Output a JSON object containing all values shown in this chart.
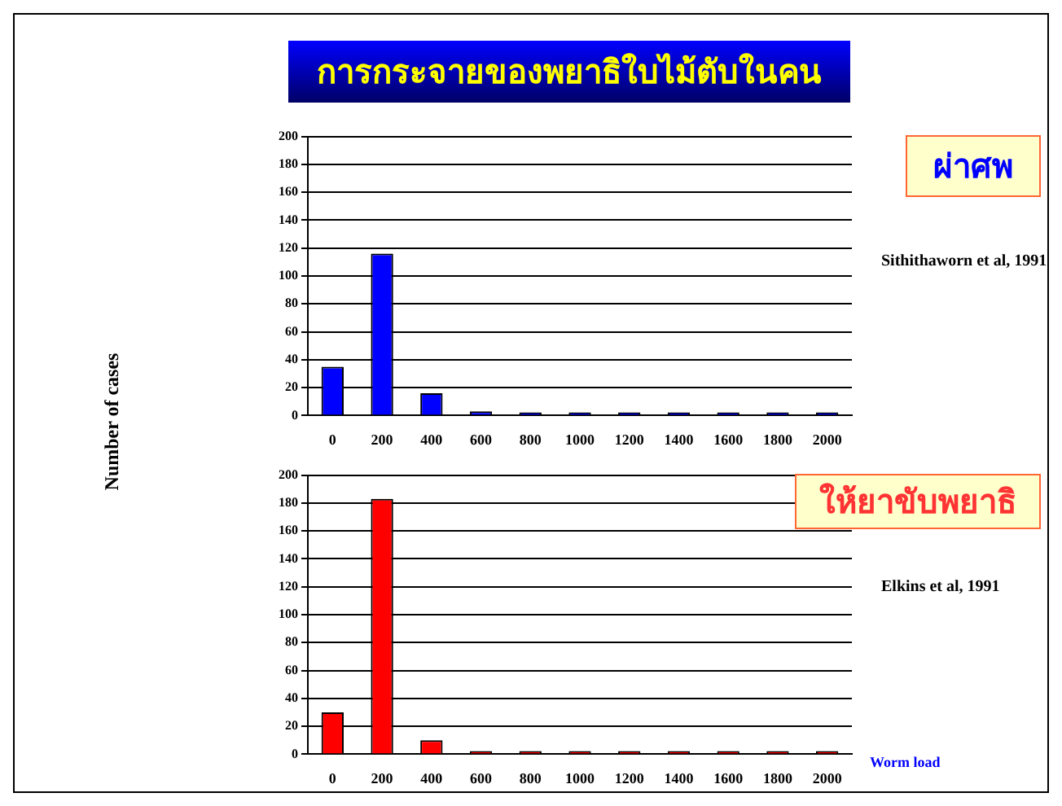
{
  "chart_data": [
    {
      "type": "bar",
      "title": "การกระจายของพยาธิใบไม้ตับในคน",
      "ylabel": "Number of cases",
      "categories": [
        "0",
        "200",
        "400",
        "600",
        "800",
        "1000",
        "1200",
        "1400",
        "1600",
        "1800",
        "2000"
      ],
      "series": [
        {
          "color": "#0000ff",
          "values": [
            35,
            116,
            16,
            3,
            1,
            1,
            0,
            1,
            1,
            0,
            0
          ]
        }
      ],
      "ylim": [
        0,
        200
      ],
      "yticks": [
        0,
        20,
        40,
        60,
        80,
        100,
        120,
        140,
        160,
        180,
        200
      ],
      "grid": "y",
      "legend": false,
      "annotations": [
        "ผ่าศพ",
        "Sithithaworn et al, 1991"
      ]
    },
    {
      "type": "bar",
      "xlabel": "Worm load",
      "categories": [
        "0",
        "200",
        "400",
        "600",
        "800",
        "1000",
        "1200",
        "1400",
        "1600",
        "1800",
        "2000"
      ],
      "series": [
        {
          "color": "#ff0000",
          "values": [
            30,
            183,
            10,
            2,
            1,
            1,
            1,
            0,
            0,
            0,
            0
          ]
        }
      ],
      "ylim": [
        0,
        200
      ],
      "yticks": [
        0,
        20,
        40,
        60,
        80,
        100,
        120,
        140,
        160,
        180,
        200
      ],
      "grid": "y",
      "legend": false,
      "annotations": [
        "ให้ยาขับพยาธิ",
        "Elkins et al, 1991"
      ]
    }
  ]
}
